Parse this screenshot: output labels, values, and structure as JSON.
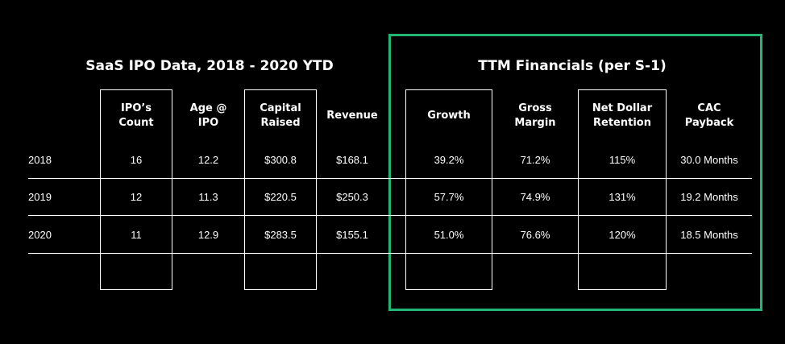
{
  "chart_data": {
    "type": "table",
    "left_title": "SaaS IPO Data, 2018 - 2020 YTD",
    "right_title": "TTM Financials (per S-1)",
    "columns": [
      "IPO’s\nCount",
      "Age @\nIPO",
      "Capital\nRaised",
      "Revenue",
      "Growth",
      "Gross\nMargin",
      "Net Dollar\nRetention",
      "CAC\nPayback"
    ],
    "rows": [
      {
        "label": "2018",
        "cells": [
          "16",
          "12.2",
          "$300.8",
          "$168.1",
          "39.2%",
          "71.2%",
          "115%",
          "30.0 Months"
        ]
      },
      {
        "label": "2019",
        "cells": [
          "12",
          "11.3",
          "$220.5",
          "$250.3",
          "57.7%",
          "74.9%",
          "131%",
          "19.2 Months"
        ]
      },
      {
        "label": "2020",
        "cells": [
          "11",
          "12.9",
          "$283.5",
          "$155.1",
          "51.0%",
          "76.6%",
          "120%",
          "18.5 Months"
        ]
      }
    ],
    "highlight_color": "#22b573"
  }
}
